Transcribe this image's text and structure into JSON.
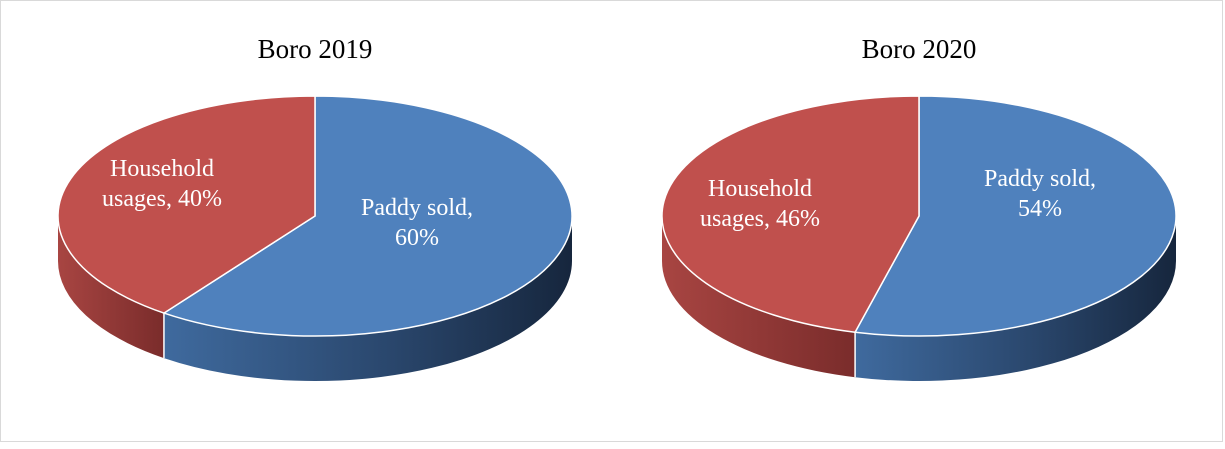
{
  "chart_data": [
    {
      "type": "pie",
      "title": "Boro 2019",
      "categories": [
        "Paddy sold",
        "Household usages"
      ],
      "values": [
        60,
        40
      ],
      "unit": "%",
      "data_labels": [
        [
          "Paddy sold,",
          "60%"
        ],
        [
          "Household",
          "usages, 40%"
        ]
      ],
      "colors": {
        "Paddy sold": "#4f81bd",
        "Household usages": "#c0504d"
      },
      "style": "3d"
    },
    {
      "type": "pie",
      "title": "Boro 2020",
      "categories": [
        "Paddy sold",
        "Household usages"
      ],
      "values": [
        54,
        46
      ],
      "unit": "%",
      "data_labels": [
        [
          "Paddy sold,",
          "54%"
        ],
        [
          "Household",
          "usages, 46%"
        ]
      ],
      "colors": {
        "Paddy sold": "#4f81bd",
        "Household usages": "#c0504d"
      },
      "style": "3d"
    }
  ]
}
